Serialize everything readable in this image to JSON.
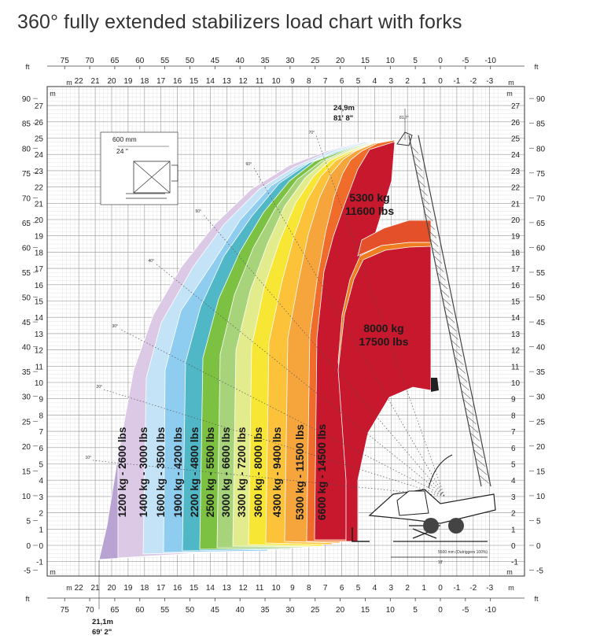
{
  "title": "360° fully extended stabilizers load chart with forks",
  "chart_data": {
    "type": "area",
    "title": "360° fully extended stabilizers load chart with forks",
    "x_axis_units": {
      "primary": "m",
      "secondary": "ft"
    },
    "y_axis_units": {
      "primary": "m",
      "secondary": "ft"
    },
    "xlim_m": [
      -3.5,
      23.0
    ],
    "ylim_m": [
      -2.5,
      28.5
    ],
    "x_ticks_m": [
      "22",
      "21",
      "20",
      "19",
      "18",
      "17",
      "16",
      "15",
      "14",
      "13",
      "12",
      "11",
      "10",
      "9",
      "8",
      "7",
      "6",
      "5",
      "4",
      "3",
      "2",
      "1",
      "0",
      "-1",
      "-2",
      "-3"
    ],
    "x_ticks_ft": [
      "75",
      "70",
      "65",
      "60",
      "55",
      "50",
      "45",
      "40",
      "35",
      "30",
      "25",
      "20",
      "15",
      "10",
      "5",
      "0",
      "-5",
      "-10"
    ],
    "y_ticks_m": [
      "27",
      "26",
      "25",
      "24",
      "23",
      "22",
      "21",
      "20",
      "19",
      "18",
      "17",
      "16",
      "15",
      "14",
      "13",
      "12",
      "11",
      "10",
      "9",
      "8",
      "7",
      "6",
      "5",
      "4",
      "3",
      "2",
      "1",
      "0",
      "-1"
    ],
    "y_ticks_ft": [
      "90",
      "85",
      "80",
      "75",
      "70",
      "65",
      "60",
      "55",
      "50",
      "45",
      "40",
      "35",
      "30",
      "25",
      "20",
      "15",
      "10",
      "5",
      "0",
      "-5"
    ],
    "grid": true,
    "load_zones": [
      {
        "label": "1200 kg - 2600 lbs",
        "color": "#b9a3d2",
        "max_reach_m": 21.1
      },
      {
        "label": "1400 kg - 3000 lbs",
        "color": "#dcc9e6",
        "max_reach_m": 19.4
      },
      {
        "label": "1600 kg - 3500 lbs",
        "color": "#c4e3f6",
        "max_reach_m": 18.2
      },
      {
        "label": "1900 kg - 4200 lbs",
        "color": "#8ecdf0",
        "max_reach_m": 17.0
      },
      {
        "label": "2200 kg - 4800 lbs",
        "color": "#4fb7c6",
        "max_reach_m": 15.9
      },
      {
        "label": "2500 kg - 5500 lbs",
        "color": "#7dc142",
        "max_reach_m": 14.9
      },
      {
        "label": "3000 kg - 6600 lbs",
        "color": "#a7d47b",
        "max_reach_m": 13.9
      },
      {
        "label": "3300 kg - 7200 lbs",
        "color": "#e3ec8c",
        "max_reach_m": 13.0
      },
      {
        "label": "3600 kg - 8000 lbs",
        "color": "#f8e634",
        "max_reach_m": 12.0
      },
      {
        "label": "4300 kg - 9400 lbs",
        "color": "#fcc33a",
        "max_reach_m": 11.0
      },
      {
        "label": "5300 kg - 11500 lbs",
        "color": "#f6a53d",
        "max_reach_m": 9.8
      },
      {
        "label": "6600 kg - 14500 lbs",
        "color": "#ef6c2a",
        "max_reach_m": 8.7
      },
      {
        "label": "8000 kg\n17500 lbs",
        "color": "#c8182d",
        "max_reach_m": 7.6
      },
      {
        "label": "5300 kg\n11600 lbs",
        "color": "#ef7d22",
        "max_reach_m": 5.0
      }
    ],
    "annotations": {
      "max_height": [
        "24,9m",
        "81' 8\""
      ],
      "max_reach": [
        "21,1m",
        "69' 2\""
      ],
      "outriggers": "5500 mm (Outriggers 100%)",
      "outriggers_ft": "18'",
      "fork_size": [
        "600 mm",
        "24 \""
      ],
      "angle_top": "81,7°",
      "angles": [
        "70°",
        "60°",
        "50°",
        "40°",
        "30°",
        "20°",
        "10°"
      ]
    }
  }
}
